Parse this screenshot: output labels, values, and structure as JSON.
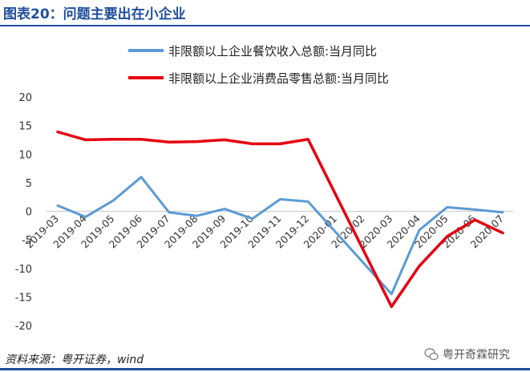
{
  "header": {
    "title": "图表20：问题主要出在小企业"
  },
  "footer": {
    "source": "资料来源：粤开证券，wind",
    "brand": "粤开奇霖研究"
  },
  "colors": {
    "title": "#1f4e9c",
    "series_blue": "#5b9bd5",
    "series_red": "#e60012"
  },
  "chart_data": {
    "type": "line",
    "x": [
      "2019-03",
      "2019-04",
      "2019-05",
      "2019-06",
      "2019-07",
      "2019-08",
      "2019-09",
      "2019-10",
      "2019-11",
      "2019-12",
      "2020-01",
      "2020-02",
      "2020-03",
      "2020-04",
      "2020-05",
      "2020-06",
      "2020-07"
    ],
    "x_tick_labels": [
      "2019-03",
      "2019-04",
      "2019-05",
      "2019-06",
      "2019-07",
      "2019-08",
      "2019-09",
      "2019-10",
      "2019-11",
      "2019-12",
      "2020-01",
      "2020-02",
      "2020-03",
      "2020-04",
      "2020-05",
      "2020-06",
      "2020-07"
    ],
    "series": [
      {
        "name": "非限额以上企业餐饮收入总额:当月同比",
        "color": "#5b9bd5",
        "values": [
          1.0,
          -1.0,
          1.9,
          6.0,
          -0.2,
          -0.8,
          0.4,
          -1.3,
          2.1,
          1.7,
          null,
          null,
          -14.5,
          -3.3,
          0.7,
          0.3,
          -0.2
        ]
      },
      {
        "name": "非限额以上企业消费品零售总额:当月同比",
        "color": "#e60012",
        "values": [
          13.9,
          12.5,
          12.6,
          12.6,
          12.1,
          12.2,
          12.5,
          11.8,
          11.8,
          12.6,
          null,
          null,
          -16.7,
          -9.6,
          -4.4,
          -1.5,
          -3.8
        ]
      }
    ],
    "y_ticks": [
      "20",
      "15",
      "10",
      "5",
      "0",
      "-5",
      "-10",
      "-15",
      "-20"
    ],
    "ylim": [
      -20,
      20
    ],
    "grid": false,
    "legend_position": "top"
  }
}
